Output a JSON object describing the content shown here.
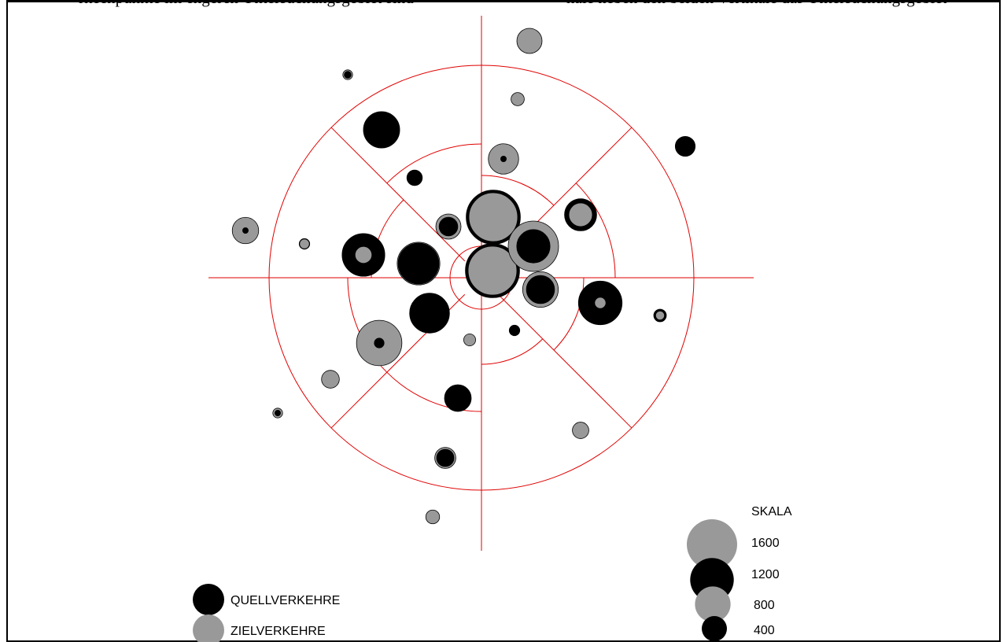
{
  "header_fragment": {
    "left": "rkeenpunkte im engeren Untersuchungsgebiet sind",
    "right": "hale neben den beiden Vertikale das Untersuchungsgebiet"
  },
  "legend": {
    "quell_label": "QUELLVERKEHRE",
    "ziel_label": "ZIELVERKEHRE",
    "colors": {
      "quell": "#000000",
      "ziel": "#999999",
      "grid": "#e00000"
    }
  },
  "scale": {
    "title": "SKALA",
    "entries": [
      {
        "label": "1600",
        "value": 1600,
        "type": "ziel"
      },
      {
        "label": "1200",
        "value": 1200,
        "type": "quell"
      },
      {
        "label": "800",
        "value": 800,
        "type": "ziel"
      },
      {
        "label": "400",
        "value": 400,
        "type": "quell"
      }
    ]
  },
  "nodes": [
    {
      "ziel": 1500,
      "quell": 1850
    },
    {
      "ziel": 1500,
      "quell": 1850
    },
    {
      "ziel": 1600,
      "quell": 700
    },
    {
      "ziel": 800,
      "quell": 500
    },
    {
      "ziel": 1150,
      "quell": 1050
    },
    {
      "ziel": 80,
      "quell": 1200
    },
    {
      "ziel": 1300,
      "quell": 60
    },
    {
      "ziel": 580,
      "quell": 20
    },
    {
      "ziel": 180,
      "quell": 1150
    },
    {
      "ziel": 350,
      "quell": 650
    },
    {
      "ziel": 0,
      "quell": 830
    },
    {
      "ziel": 0,
      "quell": 450
    },
    {
      "ziel": 280,
      "quell": 190
    },
    {
      "ziel": 200,
      "quell": 0
    },
    {
      "ziel": 170,
      "quell": 0
    },
    {
      "ziel": 90,
      "quell": 0
    },
    {
      "ziel": 60,
      "quell": 70
    },
    {
      "ziel": 0,
      "quell": 150
    },
    {
      "ziel": 50,
      "quell": 100
    },
    {
      "ziel": 0,
      "quell": 250
    },
    {
      "ziel": 400,
      "quell": 0
    },
    {
      "ziel": 110,
      "quell": 0
    },
    {
      "ziel": 120,
      "quell": 0
    },
    {
      "ziel": 440,
      "quell": 20
    },
    {
      "ziel": 60,
      "quell": 30
    },
    {
      "ziel": 60,
      "quell": 20
    },
    {
      "ziel": 0,
      "quell": 70
    },
    {
      "ziel": 25,
      "quell": 15
    },
    {
      "ziel": 400,
      "quell": 220
    },
    {
      "ziel": 0,
      "quell": 1000
    }
  ]
}
